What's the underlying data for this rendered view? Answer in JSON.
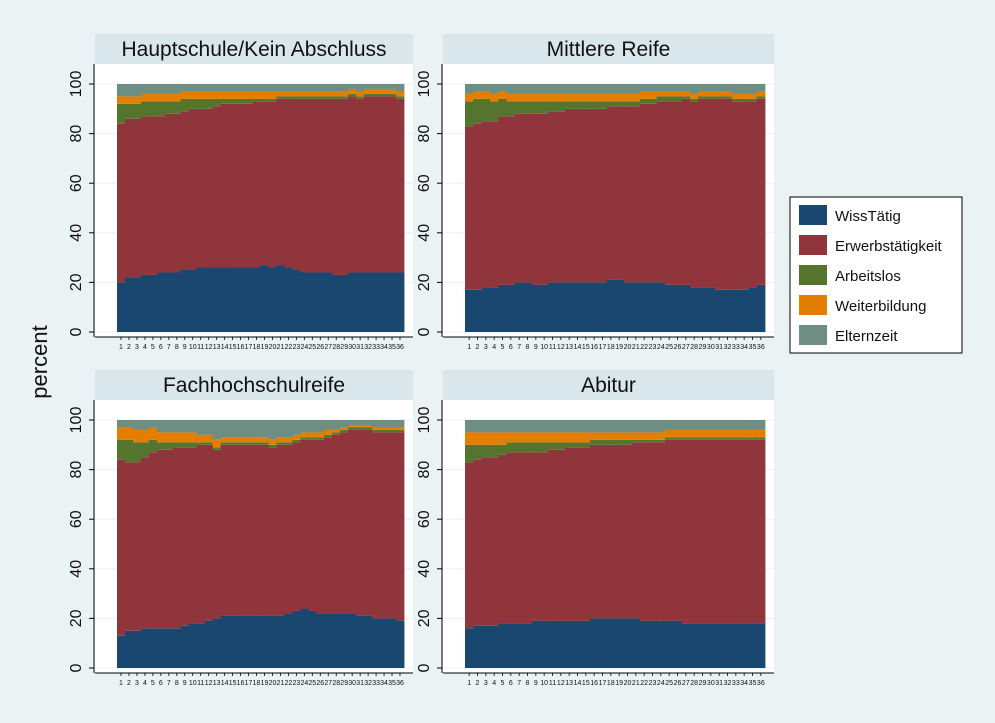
{
  "chart_data": {
    "type": "bar",
    "stacked": true,
    "ylabel": "percent",
    "ylim": [
      0,
      100
    ],
    "yticks": [
      0,
      20,
      40,
      60,
      80,
      100
    ],
    "categories": [
      "1",
      "2",
      "3",
      "4",
      "5",
      "6",
      "7",
      "8",
      "9",
      "10",
      "11",
      "12",
      "13",
      "14",
      "15",
      "16",
      "17",
      "18",
      "19",
      "20",
      "21",
      "22",
      "23",
      "24",
      "25",
      "26",
      "27",
      "28",
      "29",
      "30",
      "31",
      "32",
      "33",
      "34",
      "35",
      "36"
    ],
    "legend": {
      "position": "right",
      "entries": [
        {
          "label": "WissTätig",
          "color": "#1a476f"
        },
        {
          "label": "Erwerbstätigkeit",
          "color": "#90353b"
        },
        {
          "label": "Arbeitslos",
          "color": "#55752f"
        },
        {
          "label": "Weiterbildung",
          "color": "#e37e00"
        },
        {
          "label": "Elternzeit",
          "color": "#6e8e84"
        }
      ]
    },
    "panels": [
      {
        "title": "Hauptschule/Kein Abschluss",
        "series": [
          {
            "name": "WissTätig",
            "values": [
              20,
              22,
              22,
              23,
              23,
              24,
              24,
              24,
              25,
              25,
              26,
              26,
              26,
              26,
              26,
              26,
              26,
              26,
              27,
              26,
              27,
              26,
              25,
              24,
              24,
              24,
              24,
              23,
              23,
              24,
              24,
              24,
              24,
              24,
              24,
              24
            ]
          },
          {
            "name": "Erwerbstätigkeit",
            "values": [
              64,
              64,
              64,
              64,
              64,
              63,
              64,
              64,
              64,
              65,
              64,
              64,
              65,
              66,
              66,
              66,
              66,
              67,
              66,
              67,
              67,
              68,
              69,
              70,
              70,
              70,
              70,
              71,
              71,
              71,
              70,
              71,
              71,
              71,
              71,
              70
            ]
          },
          {
            "name": "Arbeitslos",
            "values": [
              8,
              6,
              6,
              6,
              6,
              6,
              5,
              5,
              5,
              4,
              4,
              4,
              3,
              2,
              2,
              2,
              2,
              1,
              1,
              1,
              1,
              1,
              1,
              1,
              1,
              1,
              1,
              1,
              1,
              1,
              1,
              1,
              1,
              1,
              1,
              1
            ]
          },
          {
            "name": "Weiterbildung",
            "values": [
              3,
              3,
              3,
              3,
              3,
              3,
              3,
              3,
              3,
              3,
              3,
              3,
              3,
              3,
              3,
              3,
              3,
              3,
              3,
              3,
              2,
              2,
              2,
              2,
              2,
              2,
              2,
              2,
              2,
              2,
              2,
              2,
              2,
              2,
              2,
              2
            ]
          },
          {
            "name": "Elternzeit",
            "values": [
              5,
              5,
              5,
              4,
              4,
              4,
              4,
              4,
              3,
              3,
              3,
              3,
              3,
              3,
              3,
              3,
              3,
              3,
              3,
              3,
              3,
              3,
              3,
              3,
              3,
              3,
              3,
              3,
              3,
              2,
              3,
              2,
              2,
              2,
              2,
              3
            ]
          }
        ]
      },
      {
        "title": "Mittlere Reife",
        "series": [
          {
            "name": "WissTätig",
            "values": [
              17,
              17,
              18,
              18,
              19,
              19,
              20,
              20,
              19,
              19,
              20,
              20,
              20,
              20,
              20,
              20,
              20,
              21,
              21,
              20,
              20,
              20,
              20,
              20,
              19,
              19,
              19,
              18,
              18,
              18,
              17,
              17,
              17,
              17,
              18,
              19
            ]
          },
          {
            "name": "Erwerbstätigkeit",
            "values": [
              66,
              67,
              67,
              67,
              68,
              68,
              68,
              68,
              69,
              69,
              69,
              69,
              70,
              70,
              70,
              70,
              70,
              70,
              70,
              71,
              71,
              72,
              72,
              73,
              74,
              74,
              75,
              75,
              76,
              76,
              77,
              77,
              76,
              76,
              75,
              75
            ]
          },
          {
            "name": "Arbeitslos",
            "values": [
              10,
              10,
              9,
              8,
              7,
              6,
              5,
              5,
              5,
              5,
              4,
              4,
              3,
              3,
              3,
              3,
              3,
              2,
              2,
              2,
              2,
              2,
              2,
              2,
              2,
              2,
              1,
              1,
              1,
              1,
              1,
              1,
              1,
              1,
              1,
              1
            ]
          },
          {
            "name": "Weiterbildung",
            "values": [
              3,
              3,
              3,
              3,
              3,
              3,
              3,
              3,
              3,
              3,
              3,
              3,
              3,
              3,
              3,
              3,
              3,
              3,
              3,
              3,
              3,
              3,
              3,
              2,
              2,
              2,
              2,
              2,
              2,
              2,
              2,
              2,
              2,
              2,
              2,
              2
            ]
          },
          {
            "name": "Elternzeit",
            "values": [
              4,
              3,
              3,
              4,
              3,
              4,
              4,
              4,
              4,
              4,
              4,
              4,
              4,
              4,
              4,
              4,
              4,
              4,
              4,
              4,
              4,
              3,
              3,
              3,
              3,
              3,
              3,
              4,
              3,
              3,
              3,
              3,
              4,
              4,
              4,
              3
            ]
          }
        ]
      },
      {
        "title": "Fachhochschulreife",
        "series": [
          {
            "name": "WissTätig",
            "values": [
              13,
              15,
              15,
              16,
              16,
              16,
              16,
              16,
              17,
              18,
              18,
              19,
              20,
              21,
              21,
              21,
              21,
              21,
              21,
              21,
              21,
              22,
              23,
              24,
              23,
              22,
              22,
              22,
              22,
              22,
              21,
              21,
              20,
              20,
              20,
              19
            ]
          },
          {
            "name": "Erwerbstätigkeit",
            "values": [
              71,
              68,
              68,
              69,
              71,
              72,
              72,
              73,
              72,
              71,
              72,
              71,
              68,
              69,
              69,
              69,
              69,
              69,
              69,
              68,
              69,
              68,
              68,
              68,
              69,
              70,
              71,
              72,
              73,
              74,
              75,
              75,
              75,
              75,
              75,
              76
            ]
          },
          {
            "name": "Arbeitslos",
            "values": [
              8,
              9,
              8,
              6,
              5,
              3,
              3,
              2,
              2,
              2,
              1,
              1,
              1,
              1,
              1,
              1,
              1,
              1,
              1,
              1,
              1,
              1,
              1,
              1,
              1,
              1,
              1,
              1,
              1,
              1,
              1,
              1,
              1,
              1,
              1,
              1
            ]
          },
          {
            "name": "Weiterbildung",
            "values": [
              5,
              5,
              5,
              5,
              5,
              4,
              4,
              4,
              4,
              4,
              3,
              3,
              3,
              2,
              2,
              2,
              2,
              2,
              2,
              2,
              2,
              2,
              2,
              2,
              2,
              2,
              2,
              1,
              1,
              1,
              1,
              1,
              1,
              1,
              1,
              1
            ]
          },
          {
            "name": "Elternzeit",
            "values": [
              3,
              3,
              4,
              4,
              3,
              5,
              5,
              5,
              5,
              5,
              6,
              6,
              8,
              7,
              7,
              7,
              7,
              7,
              7,
              8,
              7,
              7,
              6,
              5,
              5,
              5,
              4,
              4,
              3,
              2,
              2,
              2,
              3,
              3,
              3,
              3
            ]
          }
        ]
      },
      {
        "title": "Abitur",
        "series": [
          {
            "name": "WissTätig",
            "values": [
              16,
              17,
              17,
              17,
              18,
              18,
              18,
              18,
              19,
              19,
              19,
              19,
              19,
              19,
              19,
              20,
              20,
              20,
              20,
              20,
              20,
              19,
              19,
              19,
              19,
              19,
              18,
              18,
              18,
              18,
              18,
              18,
              18,
              18,
              18,
              18
            ]
          },
          {
            "name": "Erwerbstätigkeit",
            "values": [
              67,
              67,
              68,
              68,
              68,
              69,
              69,
              69,
              68,
              68,
              69,
              69,
              70,
              70,
              70,
              70,
              70,
              70,
              70,
              70,
              71,
              72,
              72,
              72,
              73,
              73,
              74,
              74,
              74,
              74,
              74,
              74,
              74,
              74,
              74,
              74
            ]
          },
          {
            "name": "Arbeitslos",
            "values": [
              7,
              6,
              5,
              5,
              4,
              4,
              4,
              4,
              4,
              4,
              3,
              3,
              2,
              2,
              2,
              2,
              2,
              2,
              2,
              2,
              1,
              1,
              1,
              1,
              1,
              1,
              1,
              1,
              1,
              1,
              1,
              1,
              1,
              1,
              1,
              1
            ]
          },
          {
            "name": "Weiterbildung",
            "values": [
              5,
              5,
              5,
              5,
              5,
              4,
              4,
              4,
              4,
              4,
              4,
              4,
              4,
              4,
              4,
              3,
              3,
              3,
              3,
              3,
              3,
              3,
              3,
              3,
              3,
              3,
              3,
              3,
              3,
              3,
              3,
              3,
              3,
              3,
              3,
              3
            ]
          },
          {
            "name": "Elternzeit",
            "values": [
              5,
              5,
              5,
              5,
              5,
              5,
              5,
              5,
              5,
              5,
              5,
              5,
              5,
              5,
              5,
              5,
              5,
              5,
              5,
              5,
              5,
              5,
              5,
              5,
              4,
              4,
              4,
              4,
              4,
              4,
              4,
              4,
              4,
              4,
              4,
              4
            ]
          }
        ]
      }
    ]
  }
}
